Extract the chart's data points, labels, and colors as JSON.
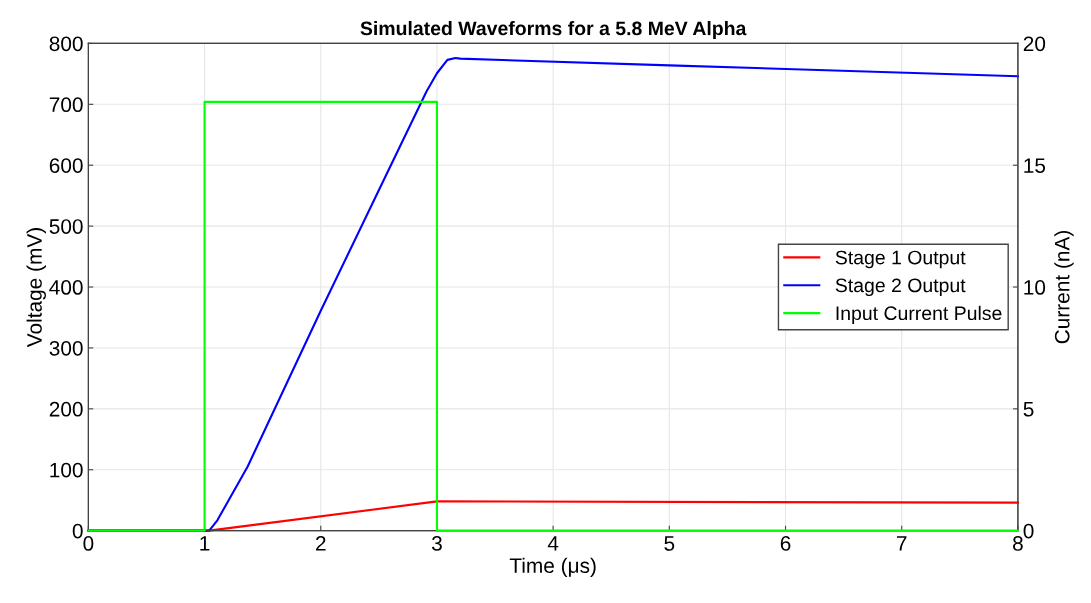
{
  "chart_data": {
    "type": "line",
    "title": "Simulated Waveforms for a 5.8 MeV Alpha",
    "xlabel": "Time (μs)",
    "ylabel": "Voltage (mV)",
    "y2label": "Current (nA)",
    "xlim": [
      0,
      8
    ],
    "xticks": [
      0,
      1,
      2,
      3,
      4,
      5,
      6,
      7,
      8
    ],
    "ylim": [
      0,
      800
    ],
    "yticks": [
      0,
      100,
      200,
      300,
      400,
      500,
      600,
      700,
      800
    ],
    "y2lim": [
      0,
      20
    ],
    "y2ticks": [
      0,
      5,
      10,
      15,
      20
    ],
    "grid": true,
    "legend": "right",
    "series": [
      {
        "name": "Stage 1 Output",
        "color": "#ff0000",
        "x": [
          0,
          1.04,
          3.0,
          8
        ],
        "values": [
          0,
          0,
          48,
          46
        ]
      },
      {
        "name": "Stage 2 Output",
        "color": "#0000ff",
        "x": [
          0,
          1.04,
          1.11,
          1.37,
          2.0,
          2.51,
          2.91,
          3.0,
          3.09,
          3.16,
          3.2,
          5,
          8
        ],
        "values": [
          0,
          0,
          17,
          105,
          361,
          563,
          721,
          751,
          773,
          776,
          775,
          764,
          746
        ]
      },
      {
        "name": "Input Current Pulse",
        "color": "#00ff00",
        "axis": "y2",
        "type": "step",
        "x": [
          0,
          1,
          1,
          3,
          3,
          8
        ],
        "values": [
          0,
          0,
          17.6,
          17.6,
          0,
          0
        ]
      }
    ]
  }
}
